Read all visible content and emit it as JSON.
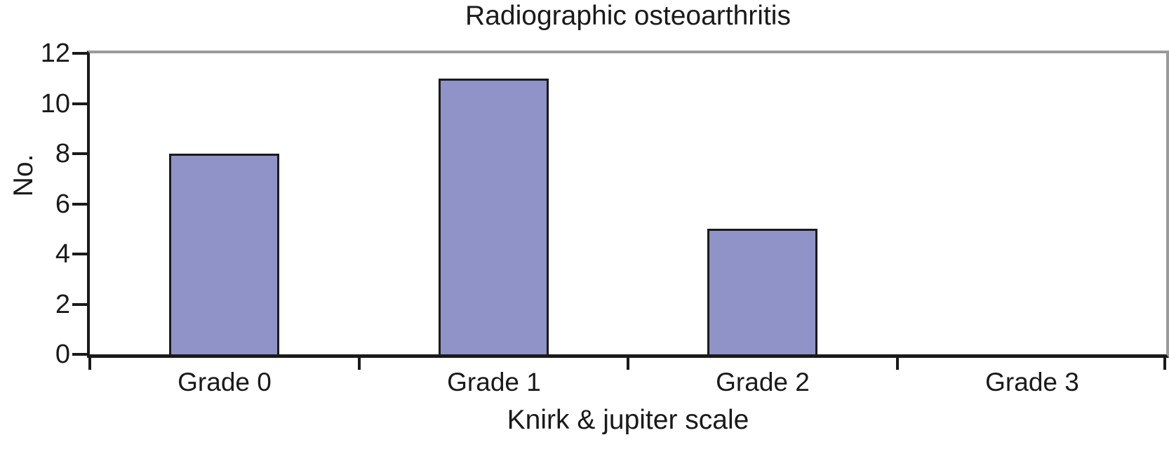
{
  "chart_data": {
    "type": "bar",
    "title": "Radiographic osteoarthritis",
    "xlabel": "Knirk & jupiter scale",
    "ylabel": "No.",
    "categories": [
      "Grade 0",
      "Grade 1",
      "Grade 2",
      "Grade 3"
    ],
    "values": [
      8,
      11,
      5,
      0
    ],
    "yticks": [
      0,
      2,
      4,
      6,
      8,
      10,
      12
    ],
    "ylim": [
      0,
      12
    ],
    "legend": "none",
    "grid": "off",
    "colors": {
      "bar_fill": "#9093c7",
      "bar_border": "#1a1a1a",
      "axis": "#1a1a1a",
      "frame_top_right": "#9a9a9a",
      "background": "#ffffff",
      "text": "#1a1a1a"
    }
  }
}
